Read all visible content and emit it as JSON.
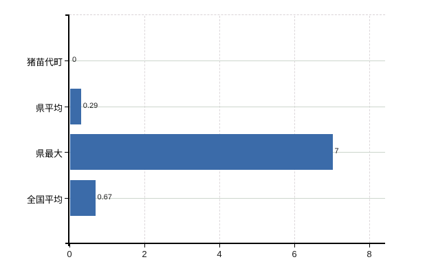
{
  "chart_data": {
    "type": "bar",
    "orientation": "horizontal",
    "categories": [
      "猪苗代町",
      "県平均",
      "県最大",
      "全国平均"
    ],
    "values": [
      0,
      0.29,
      7,
      0.67
    ],
    "value_labels": [
      "0",
      "0.29",
      "7",
      "0.67"
    ],
    "x_tick_labels": [
      "0",
      "2",
      "4",
      "6",
      "8"
    ],
    "x_tick_values": [
      0,
      2,
      4,
      6,
      8
    ],
    "xlim": [
      0,
      8.42
    ],
    "grid": true,
    "legend": false,
    "title": "",
    "xlabel": "",
    "ylabel": "",
    "bar_color": "#3b6ba9",
    "axis_color": "#000000",
    "h_gridline_color": "#ccd5cc",
    "v_gridline_color": "#dcd7da",
    "top_border_color": "#d9d2d6",
    "label_color": "#1a1a1a",
    "category_label_color": "#000000"
  }
}
